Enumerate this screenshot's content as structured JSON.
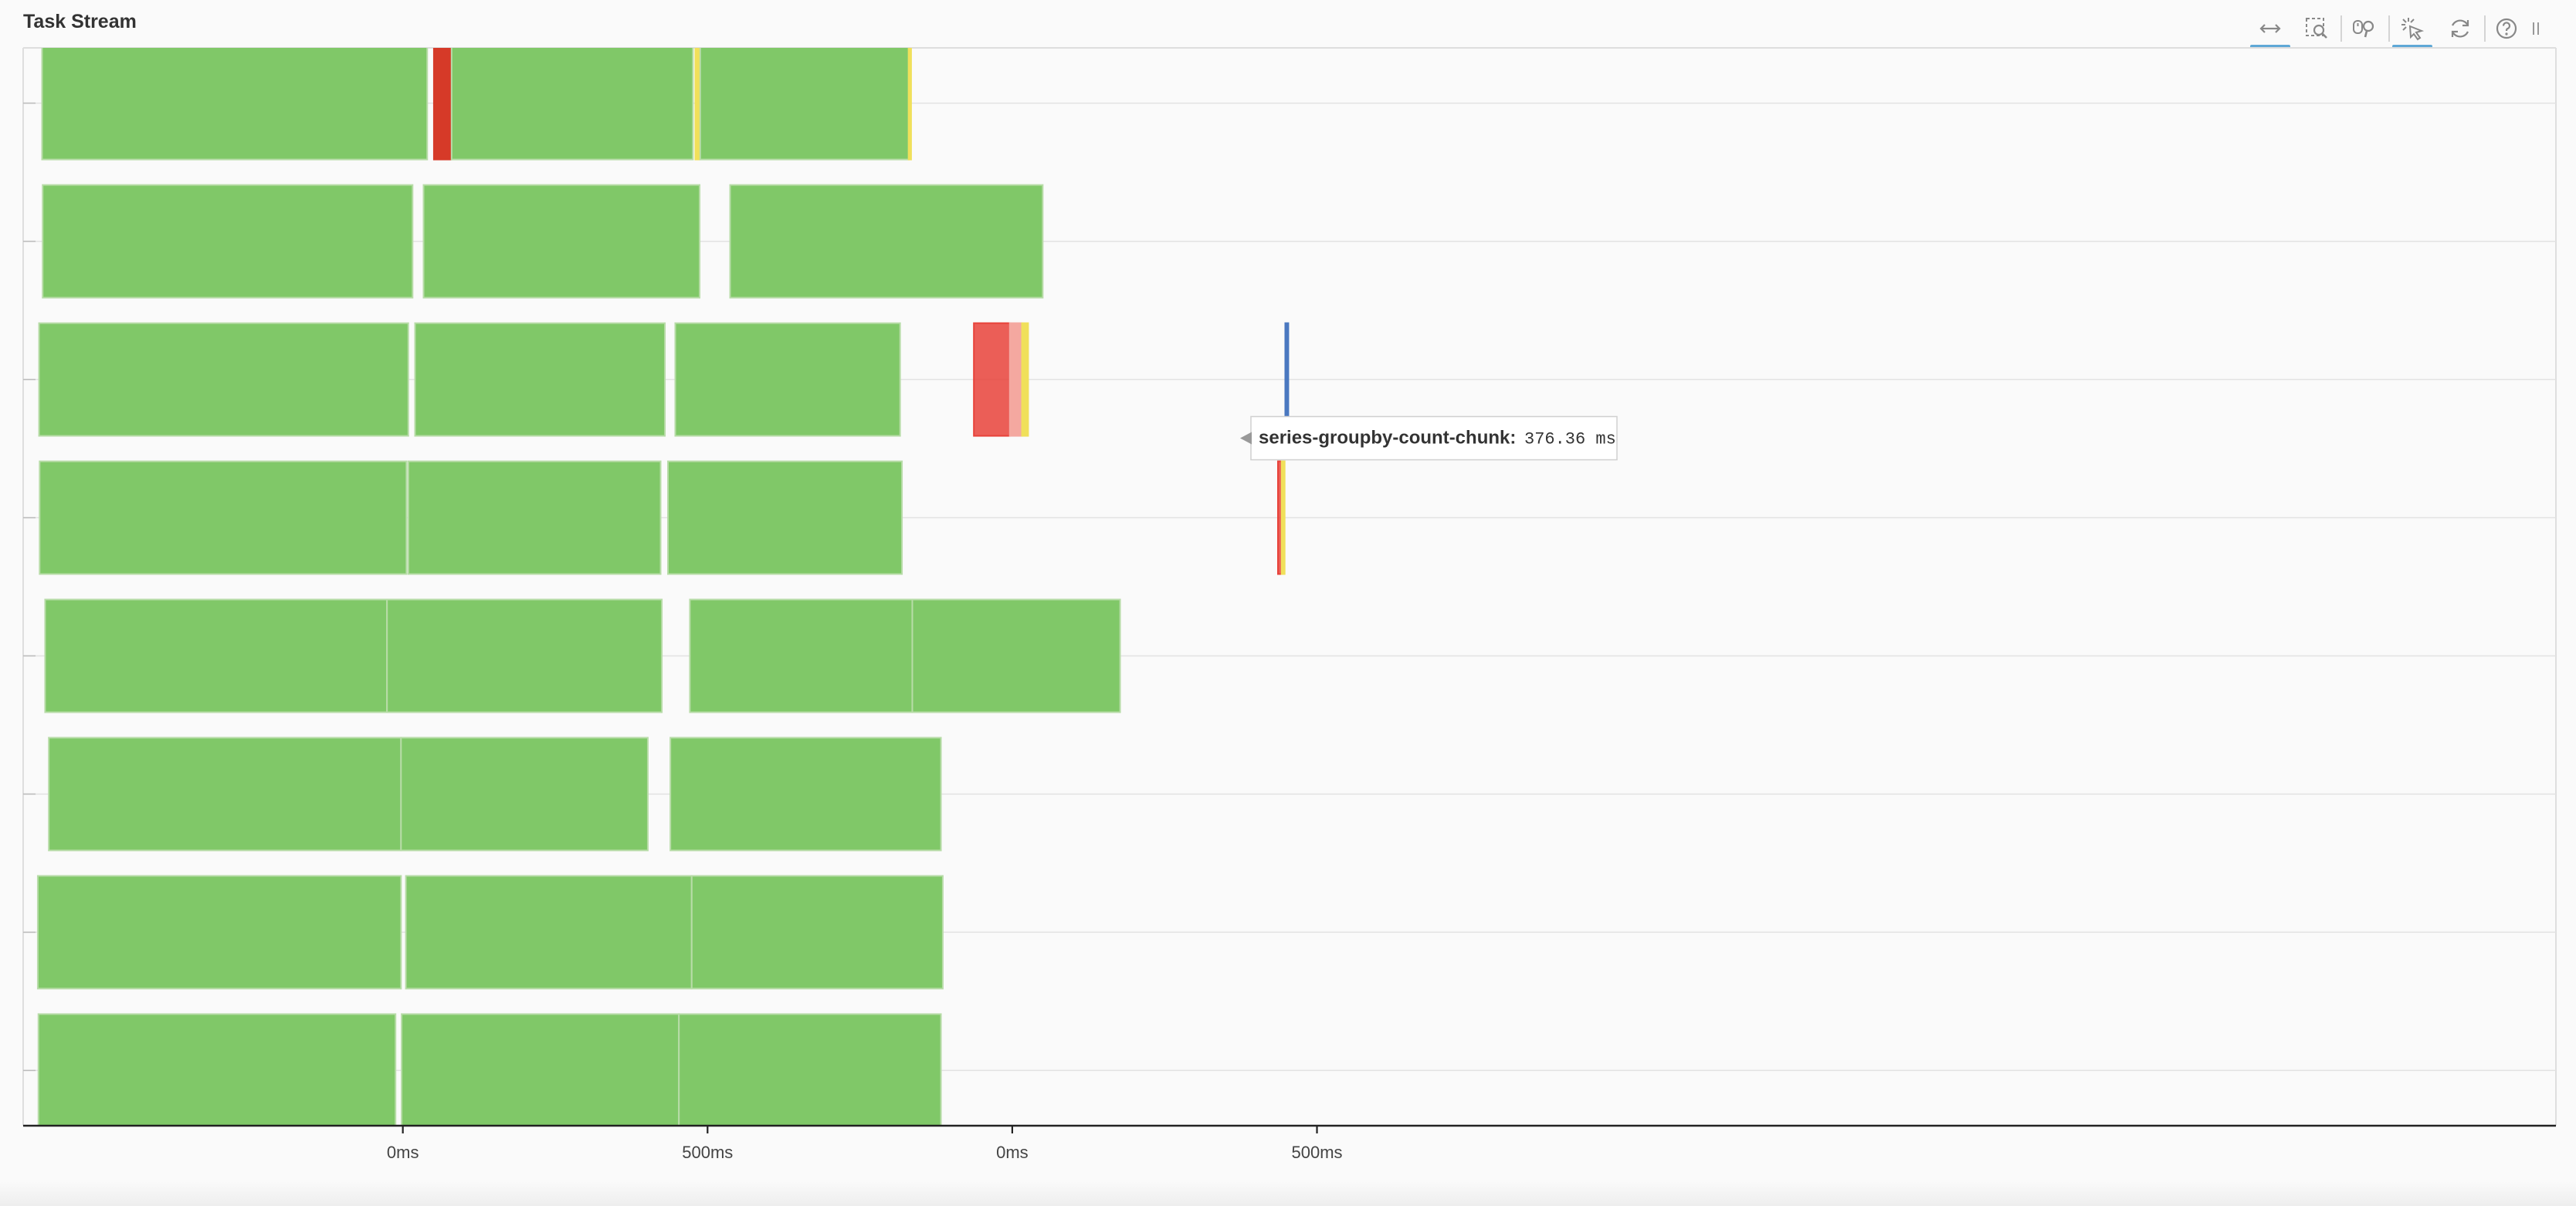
{
  "panel": {
    "title": "Task Stream"
  },
  "toolbar": {
    "tools": [
      {
        "name": "pan-tool",
        "icon": "pan-icon",
        "active": true
      },
      {
        "name": "box-zoom-tool",
        "icon": "box-zoom-icon",
        "active": false
      },
      {
        "name": "wheel-zoom-tool",
        "icon": "wheel-zoom-icon",
        "active": false
      },
      {
        "name": "tap-tool",
        "icon": "tap-icon",
        "active": true
      },
      {
        "name": "reset-tool",
        "icon": "reset-icon",
        "active": false
      },
      {
        "name": "help-tool",
        "icon": "help-icon",
        "active": false
      }
    ]
  },
  "chart_data": {
    "type": "gantt",
    "xlabel": "",
    "ylabel": "",
    "grid": true,
    "xlim": [
      -623,
      3533
    ],
    "x_ticks": [
      {
        "label": "0ms",
        "value": 0
      },
      {
        "label": "500ms",
        "value": 500
      },
      {
        "label": "0ms",
        "value": 1000
      },
      {
        "label": "500ms",
        "value": 1500
      }
    ],
    "rows": [
      {
        "tasks": [
          {
            "start": -592,
            "end": 40,
            "color": "#80c868"
          },
          {
            "start": 51,
            "end": 79,
            "color": "#d63a28"
          },
          {
            "start": 80,
            "end": 476,
            "color": "#80c868"
          },
          {
            "start": 480,
            "end": 487,
            "color": "#f0e05a"
          },
          {
            "start": 488,
            "end": 830,
            "color": "#80c868"
          },
          {
            "start": 830,
            "end": 834,
            "color": "#f0e05a"
          }
        ]
      },
      {
        "tasks": [
          {
            "start": -591,
            "end": 16,
            "color": "#80c868"
          },
          {
            "start": 34,
            "end": 487,
            "color": "#80c868"
          },
          {
            "start": 537,
            "end": 1050,
            "color": "#80c868"
          }
        ]
      },
      {
        "tasks": [
          {
            "start": -597,
            "end": 9,
            "color": "#80c868"
          },
          {
            "start": 20,
            "end": 430,
            "color": "#80c868"
          },
          {
            "start": 447,
            "end": 816,
            "color": "#80c868"
          },
          {
            "start": 937,
            "end": 996,
            "color": "#e8423a"
          },
          {
            "start": 996,
            "end": 1016,
            "color": "#f4a8a0"
          },
          {
            "start": 1016,
            "end": 1026,
            "color": "#f0e05a"
          },
          {
            "start": 1448,
            "end": 1453,
            "color": "#4a78c0"
          }
        ]
      },
      {
        "tasks": [
          {
            "start": -596,
            "end": 6,
            "color": "#80c868"
          },
          {
            "start": 9,
            "end": 423,
            "color": "#80c868"
          },
          {
            "start": 435,
            "end": 819,
            "color": "#80c868"
          },
          {
            "start": 1436,
            "end": 1442,
            "color": "#e8423a"
          },
          {
            "start": 1442,
            "end": 1447,
            "color": "#f0e05a"
          }
        ]
      },
      {
        "tasks": [
          {
            "start": -587,
            "end": -26,
            "color": "#80c868"
          },
          {
            "start": -26,
            "end": 425,
            "color": "#80c868"
          },
          {
            "start": 471,
            "end": 836,
            "color": "#80c868"
          },
          {
            "start": 836,
            "end": 1177,
            "color": "#80c868"
          }
        ]
      },
      {
        "tasks": [
          {
            "start": -581,
            "end": -3,
            "color": "#80c868"
          },
          {
            "start": -3,
            "end": 402,
            "color": "#80c868"
          },
          {
            "start": 439,
            "end": 883,
            "color": "#80c868"
          }
        ]
      },
      {
        "tasks": [
          {
            "start": -599,
            "end": -3,
            "color": "#80c868"
          },
          {
            "start": 5,
            "end": 474,
            "color": "#80c868"
          },
          {
            "start": 474,
            "end": 886,
            "color": "#80c868"
          }
        ]
      },
      {
        "tasks": [
          {
            "start": -598,
            "end": -12,
            "color": "#80c868"
          },
          {
            "start": -2,
            "end": 453,
            "color": "#80c868"
          },
          {
            "start": 453,
            "end": 883,
            "color": "#80c868"
          }
        ]
      }
    ],
    "tooltip": {
      "row": 3,
      "name": "series-groupby-count-chunk:",
      "value": "376.36 ms"
    }
  }
}
